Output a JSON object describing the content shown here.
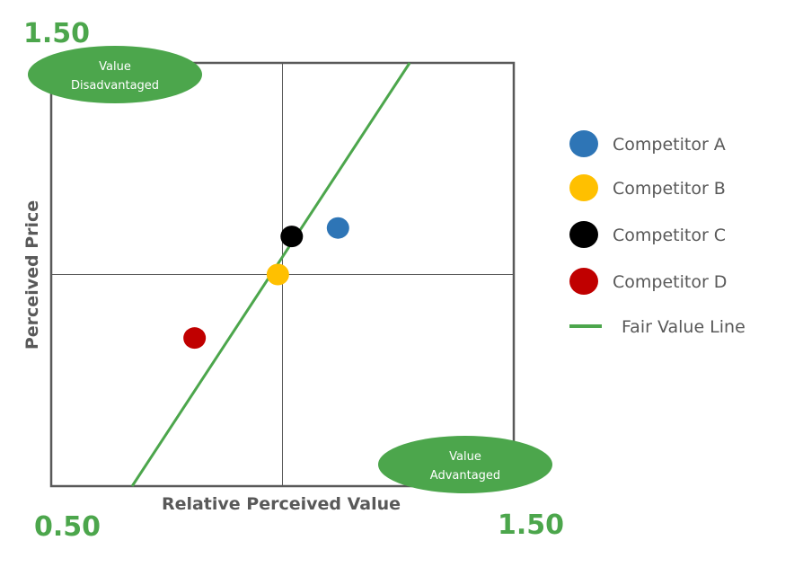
{
  "chart_data": {
    "type": "scatter",
    "xlabel": "Relative Perceived Value",
    "ylabel": "Perceived Price",
    "xlim": [
      0.5,
      1.5
    ],
    "ylim": [
      0.5,
      1.5
    ],
    "corner_labels": {
      "top_left": "1.50",
      "bottom_left": "0.50",
      "bottom_right": "1.50"
    },
    "grid": false,
    "quadrant_lines": {
      "x": 1.0,
      "y": 1.0
    },
    "legend_position": "right",
    "series": [
      {
        "name": "Competitor A",
        "color": "#2E75B6",
        "points": [
          {
            "x": 1.12,
            "y": 1.11
          }
        ]
      },
      {
        "name": "Competitor B",
        "color": "#FFC000",
        "points": [
          {
            "x": 0.99,
            "y": 1.0
          }
        ]
      },
      {
        "name": "Competitor C",
        "color": "#000000",
        "points": [
          {
            "x": 1.02,
            "y": 1.09
          }
        ]
      },
      {
        "name": "Competitor D",
        "color": "#C00000",
        "points": [
          {
            "x": 0.81,
            "y": 0.85
          }
        ]
      }
    ],
    "fair_value_line": {
      "name": "Fair Value Line",
      "color": "#4CA64C",
      "points": [
        {
          "x": 0.675,
          "y": 0.5
        },
        {
          "x": 1.275,
          "y": 1.5
        }
      ]
    },
    "annotations": [
      {
        "text_lines": [
          "Value",
          "Disadvantaged"
        ],
        "anchor": "top-left"
      },
      {
        "text_lines": [
          "Value",
          "Advantaged"
        ],
        "anchor": "bottom-right"
      }
    ],
    "accent_color": "#4CA64C",
    "oval_color": "#4CA64C",
    "axis_color": "#595959"
  }
}
